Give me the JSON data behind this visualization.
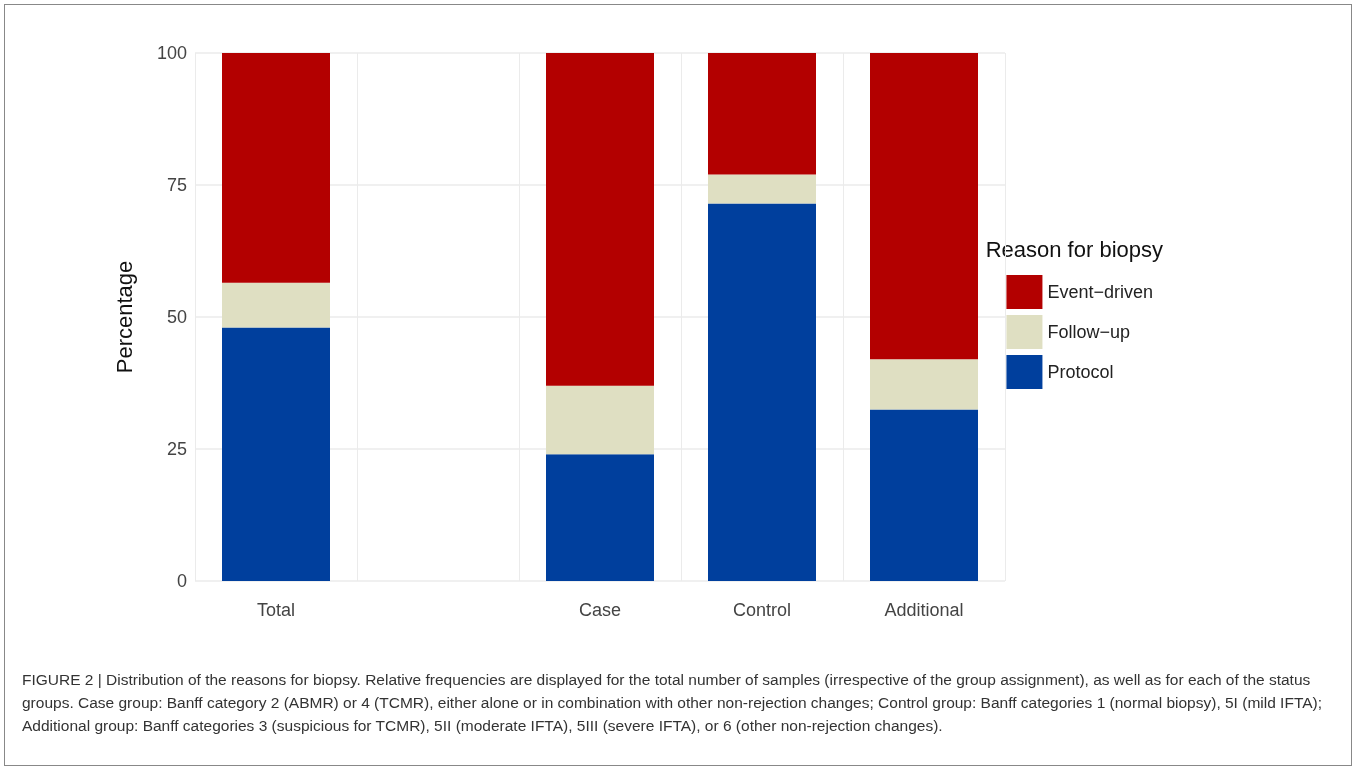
{
  "chart_data": {
    "type": "bar",
    "stacked": true,
    "ylabel": "Percentage",
    "legend_title": "Reason for biopsy",
    "legend": "right",
    "grid": true,
    "categories": [
      "Total",
      null,
      "Case",
      "Control",
      "Additional"
    ],
    "ylim": [
      0,
      100
    ],
    "yticks": [
      0,
      25,
      50,
      75,
      100
    ],
    "series": [
      {
        "name": "Protocol",
        "color": "#003f9d",
        "values": [
          48,
          null,
          24,
          71.5,
          32.5
        ]
      },
      {
        "name": "Follow−up",
        "color": "#dfdfc2",
        "values": [
          8.5,
          null,
          13,
          5.5,
          9.5
        ]
      },
      {
        "name": "Event−driven",
        "color": "#b30000",
        "values": [
          43.5,
          null,
          63,
          23,
          58
        ]
      }
    ],
    "annotations": [
      "FIGURE 2 | Distribution of the reasons for biopsy. Relative frequencies are displayed for the total number of samples (irrespective of the group assignment), as well as for each of the status groups. Case group: Banff category 2 (ABMR) or 4 (TCMR), either alone or in combination with other non-rejection changes; Control group: Banff categories 1 (normal biopsy), 5I (mild IFTA); Additional group: Banff categories 3 (suspicious for TCMR), 5II (moderate IFTA), 5III (severe IFTA), or 6 (other non-rejection changes)."
    ]
  }
}
